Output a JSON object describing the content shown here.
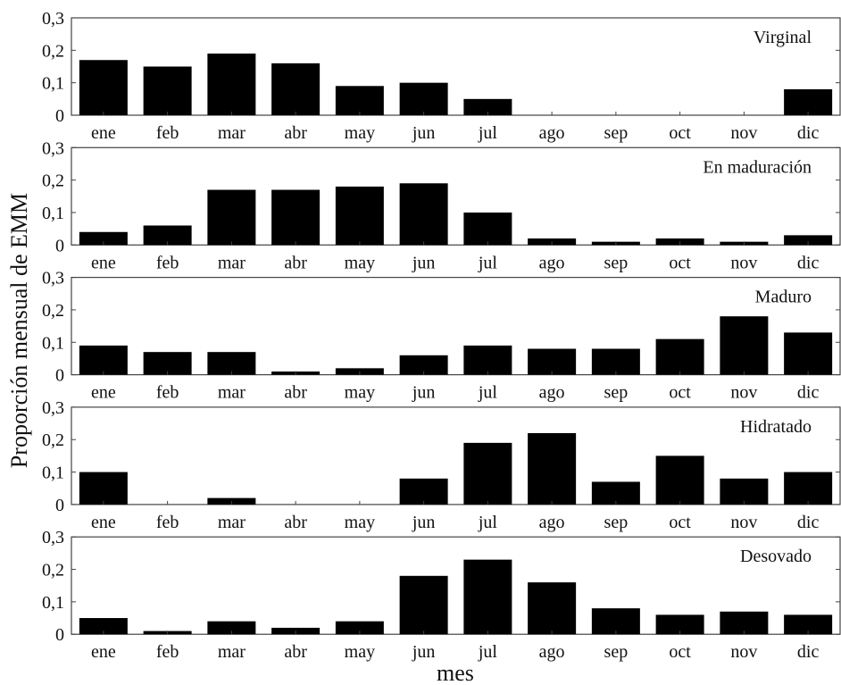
{
  "chart_data": {
    "type": "bar",
    "ylabel": "Proporción mensual de EMM",
    "xlabel": "mes",
    "categories": [
      "ene",
      "feb",
      "mar",
      "abr",
      "may",
      "jun",
      "jul",
      "ago",
      "sep",
      "oct",
      "nov",
      "dic"
    ],
    "ylim": [
      0,
      0.3
    ],
    "yticks": [
      "0",
      "0,1",
      "0,2",
      "0,3"
    ],
    "grid": false,
    "bar_color": "#000000",
    "series": [
      {
        "name": "Virginal",
        "values": [
          0.17,
          0.15,
          0.19,
          0.16,
          0.09,
          0.1,
          0.05,
          0,
          0,
          0,
          0,
          0.08
        ]
      },
      {
        "name": "En maduración",
        "values": [
          0.04,
          0.06,
          0.17,
          0.17,
          0.18,
          0.19,
          0.1,
          0.02,
          0.01,
          0.02,
          0.01,
          0.03
        ]
      },
      {
        "name": "Maduro",
        "values": [
          0.09,
          0.07,
          0.07,
          0.01,
          0.02,
          0.06,
          0.09,
          0.08,
          0.08,
          0.11,
          0.18,
          0.13
        ]
      },
      {
        "name": "Hidratado",
        "values": [
          0.1,
          0,
          0.02,
          0,
          0,
          0.08,
          0.19,
          0.22,
          0.07,
          0.15,
          0.08,
          0.1
        ]
      },
      {
        "name": "Desovado",
        "values": [
          0.05,
          0.01,
          0.04,
          0.02,
          0.04,
          0.18,
          0.23,
          0.16,
          0.08,
          0.06,
          0.07,
          0.06
        ]
      }
    ]
  }
}
